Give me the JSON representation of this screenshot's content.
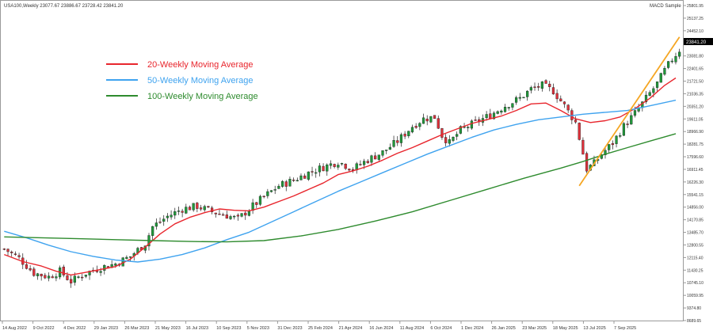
{
  "header": {
    "symbol_info": "USA100,Weekly  23077.67 23886.67 23728.42 23841.20",
    "broker": "MACD Sample"
  },
  "legend": [
    {
      "label": "20-Weekly Moving Average",
      "color": "#e8262d"
    },
    {
      "label": "50-Weekly Moving Average",
      "color": "#3fa3ef"
    },
    {
      "label": "100-Weekly Moving Average",
      "color": "#2e8b2e"
    }
  ],
  "colors": {
    "bull_candle": "#1f9a3a",
    "bear_candle": "#e0303a",
    "trendline": "#f5a623",
    "price_label_bg": "#000000",
    "price_label_text": "#ffffff"
  },
  "current_price_label": "23841.20",
  "chart_data": {
    "type": "line",
    "title": "",
    "xlabel": "",
    "ylabel": "",
    "ylim": [
      9290,
      26152
    ],
    "y_ticks": [
      "25801.95",
      "25137.25",
      "24452.10",
      "23762.95",
      "23081.80",
      "22401.65",
      "21721.50",
      "21036.35",
      "20351.20",
      "19611.05",
      "18966.90",
      "18281.75",
      "17596.60",
      "16911.45",
      "16226.30",
      "15541.15",
      "14856.00",
      "14170.85",
      "13485.70",
      "12800.55",
      "12115.40",
      "11430.25",
      "10745.10",
      "10059.95",
      "9374.80",
      "8689.65"
    ],
    "x_ticks": [
      "14 Aug 2022",
      "9 Oct 2022",
      "4 Dec 2022",
      "29 Jan 2023",
      "26 Mar 2023",
      "21 May 2023",
      "16 Jul 2023",
      "10 Sep 2023",
      "5 Nov 2023",
      "31 Dec 2023",
      "25 Feb 2024",
      "21 Apr 2024",
      "16 Jun 2024",
      "11 Aug 2024",
      "6 Oct 2024",
      "1 Dec 2024",
      "26 Jan 2025",
      "23 Mar 2025",
      "18 May 2025",
      "13 Jul 2025",
      "7 Sep 2025"
    ],
    "series": [
      {
        "name": "20-Weekly Moving Average",
        "color": "#e8262d",
        "points": [
          [
            0,
            12800
          ],
          [
            5,
            12420
          ],
          [
            10,
            12180
          ],
          [
            14,
            11900
          ],
          [
            18,
            11700
          ],
          [
            22,
            11840
          ],
          [
            26,
            12000
          ],
          [
            30,
            12150
          ],
          [
            34,
            12550
          ],
          [
            38,
            13200
          ],
          [
            42,
            13900
          ],
          [
            46,
            14450
          ],
          [
            50,
            14800
          ],
          [
            54,
            15050
          ],
          [
            58,
            15250
          ],
          [
            62,
            15180
          ],
          [
            66,
            15150
          ],
          [
            70,
            15350
          ],
          [
            74,
            15650
          ],
          [
            78,
            15950
          ],
          [
            82,
            16300
          ],
          [
            86,
            16650
          ],
          [
            90,
            17100
          ],
          [
            94,
            17300
          ],
          [
            98,
            17550
          ],
          [
            102,
            17880
          ],
          [
            106,
            18250
          ],
          [
            110,
            18550
          ],
          [
            114,
            18900
          ],
          [
            118,
            19250
          ],
          [
            122,
            19550
          ],
          [
            126,
            19850
          ],
          [
            130,
            20050
          ],
          [
            134,
            20250
          ],
          [
            138,
            20550
          ],
          [
            142,
            20900
          ],
          [
            146,
            20950
          ],
          [
            150,
            20550
          ],
          [
            154,
            20100
          ],
          [
            158,
            19900
          ],
          [
            162,
            20000
          ],
          [
            166,
            20200
          ],
          [
            170,
            20650
          ],
          [
            174,
            21200
          ],
          [
            178,
            21900
          ],
          [
            181,
            22300
          ]
        ]
      },
      {
        "name": "50-Weekly Moving Average",
        "color": "#3fa3ef",
        "points": [
          [
            0,
            14050
          ],
          [
            6,
            13700
          ],
          [
            12,
            13300
          ],
          [
            18,
            12950
          ],
          [
            24,
            12700
          ],
          [
            30,
            12500
          ],
          [
            36,
            12400
          ],
          [
            42,
            12550
          ],
          [
            48,
            12800
          ],
          [
            54,
            13150
          ],
          [
            60,
            13600
          ],
          [
            66,
            14000
          ],
          [
            72,
            14550
          ],
          [
            78,
            15100
          ],
          [
            84,
            15650
          ],
          [
            90,
            16200
          ],
          [
            96,
            16700
          ],
          [
            102,
            17200
          ],
          [
            108,
            17700
          ],
          [
            114,
            18200
          ],
          [
            120,
            18650
          ],
          [
            126,
            19100
          ],
          [
            132,
            19500
          ],
          [
            138,
            19800
          ],
          [
            144,
            20050
          ],
          [
            150,
            20200
          ],
          [
            156,
            20350
          ],
          [
            162,
            20450
          ],
          [
            168,
            20550
          ],
          [
            174,
            20800
          ],
          [
            181,
            21100
          ]
        ]
      },
      {
        "name": "100-Weekly Moving Average",
        "color": "#2e8b2e",
        "points": [
          [
            0,
            13750
          ],
          [
            10,
            13700
          ],
          [
            20,
            13650
          ],
          [
            30,
            13600
          ],
          [
            40,
            13550
          ],
          [
            50,
            13500
          ],
          [
            60,
            13480
          ],
          [
            70,
            13550
          ],
          [
            80,
            13800
          ],
          [
            90,
            14150
          ],
          [
            100,
            14600
          ],
          [
            110,
            15100
          ],
          [
            120,
            15700
          ],
          [
            130,
            16300
          ],
          [
            140,
            16900
          ],
          [
            150,
            17450
          ],
          [
            156,
            17800
          ],
          [
            162,
            18200
          ],
          [
            168,
            18550
          ],
          [
            174,
            18900
          ],
          [
            181,
            19300
          ]
        ]
      },
      {
        "name": "",
        "color": "#f5a623",
        "points": [
          [
            155,
            16500
          ],
          [
            182,
            24500
          ]
        ]
      }
    ],
    "candles_anchor_closes": [
      [
        0,
        13100
      ],
      [
        4,
        12600
      ],
      [
        8,
        11800
      ],
      [
        12,
        11600
      ],
      [
        15,
        11900
      ],
      [
        18,
        11350
      ],
      [
        22,
        11800
      ],
      [
        26,
        12100
      ],
      [
        30,
        12300
      ],
      [
        34,
        12700
      ],
      [
        38,
        13400
      ],
      [
        40,
        14300
      ],
      [
        44,
        14850
      ],
      [
        48,
        15250
      ],
      [
        52,
        15400
      ],
      [
        56,
        15100
      ],
      [
        60,
        14900
      ],
      [
        63,
        14700
      ],
      [
        66,
        15250
      ],
      [
        70,
        15900
      ],
      [
        74,
        16500
      ],
      [
        78,
        16800
      ],
      [
        82,
        17200
      ],
      [
        86,
        17500
      ],
      [
        90,
        17800
      ],
      [
        94,
        17400
      ],
      [
        98,
        17900
      ],
      [
        102,
        18300
      ],
      [
        106,
        18900
      ],
      [
        110,
        19700
      ],
      [
        113,
        20100
      ],
      [
        116,
        20200
      ],
      [
        118,
        19200
      ],
      [
        120,
        18800
      ],
      [
        123,
        19500
      ],
      [
        127,
        19900
      ],
      [
        131,
        20300
      ],
      [
        135,
        20800
      ],
      [
        139,
        21200
      ],
      [
        142,
        21700
      ],
      [
        145,
        21900
      ],
      [
        148,
        21600
      ],
      [
        151,
        20800
      ],
      [
        154,
        19900
      ],
      [
        157,
        17400
      ],
      [
        159,
        17700
      ],
      [
        161,
        18200
      ],
      [
        164,
        18800
      ],
      [
        167,
        19700
      ],
      [
        170,
        20400
      ],
      [
        173,
        21200
      ],
      [
        176,
        22000
      ],
      [
        178,
        22700
      ],
      [
        180,
        23300
      ],
      [
        182,
        23800
      ]
    ],
    "candle_count": 183
  }
}
